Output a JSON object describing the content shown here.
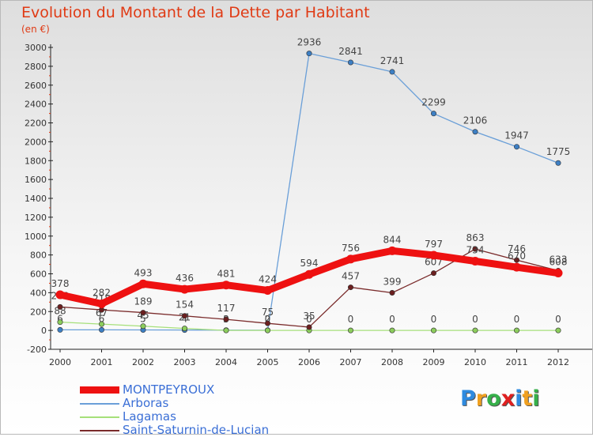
{
  "title": "Evolution du Montant de la Dette par Habitant",
  "subtitle": "(en €)",
  "logo": {
    "letters": [
      "P",
      "r",
      "o",
      "x",
      "i",
      "t",
      "i"
    ],
    "colors": [
      "#2f8be0",
      "#f0a020",
      "#36b04a",
      "#e02020",
      "#2f8be0",
      "#f0a020",
      "#36b04a"
    ]
  },
  "chart_data": {
    "type": "line",
    "x": [
      "2000",
      "2001",
      "2002",
      "2003",
      "2004",
      "2005",
      "2006",
      "2007",
      "2008",
      "2009",
      "2010",
      "2011",
      "2012"
    ],
    "ylim": [
      -200,
      3000
    ],
    "yticks": [
      "-200",
      "0",
      "200",
      "400",
      "600",
      "800",
      "1000",
      "1200",
      "1400",
      "1600",
      "1800",
      "2000",
      "2200",
      "2400",
      "2600",
      "2800",
      "3000"
    ],
    "grid": false,
    "legend_position": "bottom-left",
    "series": [
      {
        "name": "Arboras",
        "color": "#6a9fd8",
        "marker": "#3d7fc4",
        "values": [
          6,
          6,
          5,
          4,
          3,
          2,
          2936,
          2841,
          2741,
          2299,
          2106,
          1947,
          1775
        ],
        "labels": [
          "6",
          "6",
          "5",
          "4",
          "3",
          "2",
          "2936",
          "2841",
          "2741",
          "2299",
          "2106",
          "1947",
          "1775"
        ]
      },
      {
        "name": "Lagamas",
        "color": "#a6e07a",
        "marker": "#8ccd5c",
        "values": [
          88,
          67,
          45,
          21,
          0,
          0,
          0,
          0,
          0,
          0,
          0,
          0,
          0
        ],
        "labels": [
          "88",
          "67",
          "45",
          "21",
          "0",
          "0",
          "0",
          "0",
          "0",
          "0",
          "0",
          "0",
          "0"
        ]
      },
      {
        "name": "Saint-Saturnin-de-Lucian",
        "color": "#7a2b2b",
        "marker": "#6b1f1f",
        "values": [
          249,
          218,
          189,
          154,
          117,
          75,
          35,
          457,
          399,
          607,
          863,
          746,
          633
        ],
        "labels": [
          "249",
          "218",
          "189",
          "154",
          "117",
          "75",
          "35",
          "457",
          "399",
          "607",
          "863",
          "746",
          "633"
        ]
      },
      {
        "name": "MONTPEYROUX",
        "color": "#ee1111",
        "marker": "#ee1111",
        "values": [
          378,
          282,
          493,
          436,
          481,
          424,
          594,
          756,
          844,
          797,
          734,
          670,
          608
        ],
        "labels": [
          "378",
          "282",
          "493",
          "436",
          "481",
          "424",
          "594",
          "756",
          "844",
          "797",
          "734",
          "670",
          "608"
        ]
      }
    ]
  },
  "legend": [
    {
      "name": "MONTPEYROUX",
      "color": "#ee1111"
    },
    {
      "name": "Arboras",
      "color": "#6a9fd8"
    },
    {
      "name": "Lagamas",
      "color": "#a6e07a"
    },
    {
      "name": "Saint-Saturnin-de-Lucian",
      "color": "#7a2b2b"
    }
  ]
}
